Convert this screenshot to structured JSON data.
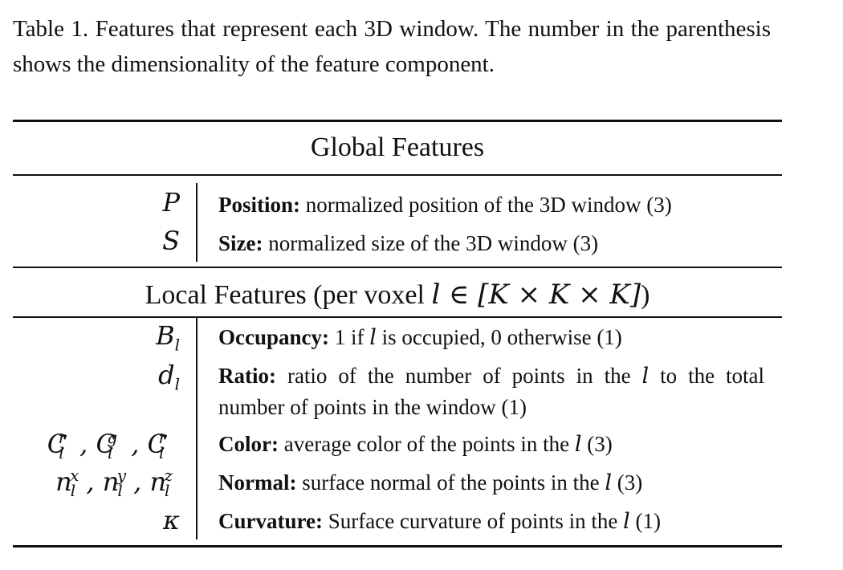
{
  "caption": "Table 1. Features that represent each 3D window.  The number in the parenthesis shows the dimensionality of the feature component.",
  "global_section": {
    "title": "Global Features",
    "rows": [
      {
        "symbol": "P",
        "label": "Position:",
        "text": "normalized position of the 3D window (3)"
      },
      {
        "symbol": "S",
        "label": "Size:",
        "text": "normalized size of the 3D window (3)"
      }
    ]
  },
  "local_section": {
    "title_prefix": "Local Features (per voxel ",
    "title_math": "l ∈ [K × K × K]",
    "title_suffix": ")",
    "rows": [
      {
        "symbol": "B_l",
        "label": "Occupancy:",
        "text_pre": "1 if ",
        "var": "l",
        "text_post": " is occupied, 0 otherwise (1)"
      },
      {
        "symbol": "d_l",
        "label": "Ratio:",
        "text_pre": "ratio of the number of points in the ",
        "var": "l",
        "text_post": " to the total number of points in the window (1)"
      },
      {
        "symbol": "C_l^r, C_l^g, C_l^r",
        "label": "Color:",
        "text_pre": "average color of the points in the ",
        "var": "l",
        "text_post": " (3)"
      },
      {
        "symbol": "n_l^x, n_l^y, n_l^z",
        "label": "Normal:",
        "text_pre": "surface normal of the points in the ",
        "var": "l",
        "text_post": " (3)"
      },
      {
        "symbol": "κ",
        "label": "Curvature:",
        "text_pre": "Surface curvature of points in the ",
        "var": "l",
        "text_post": " (1)"
      }
    ]
  }
}
